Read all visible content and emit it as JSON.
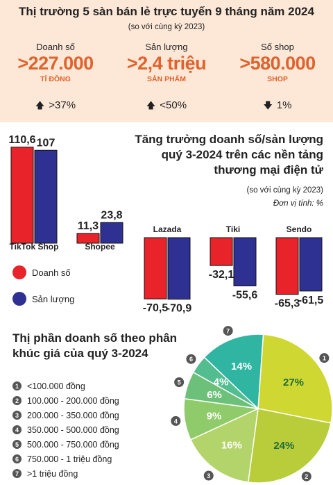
{
  "header": {
    "title": "Thị trường 5 sàn bán lẻ trực tuyến 9 tháng năm 2024",
    "subtitle": "(so với cùng kỳ 2023)"
  },
  "stats": [
    {
      "label": "Doanh số",
      "value": ">227.000",
      "unit": "TỈ ĐỒNG",
      "change": ">37%",
      "direction": "up"
    },
    {
      "label": "Sản lượng",
      "value": ">2,4 triệu",
      "unit": "SẢN PHẨM",
      "change": "<50%",
      "direction": "up"
    },
    {
      "label": "Số shop",
      "value": ">580.000",
      "unit": "SHOP",
      "change": "1%",
      "direction": "down"
    }
  ],
  "bar_section": {
    "title_lines": [
      "Tăng trưởng doanh số/sản lượng",
      "quý 3-2024 trên các nền tảng",
      "thương mại điện tử"
    ],
    "subtitle": "(so với cùng kỳ 2023)",
    "unit_note": "Đơn vị tính: %"
  },
  "pie_section": {
    "title_lines": [
      "Thị phần doanh số theo phân",
      "khúc giá của quý 3-2024"
    ]
  },
  "colors": {
    "revenue": "#e8232a",
    "volume": "#2e3192",
    "accent": "#e0622c",
    "top_bg": "#fde8d8"
  },
  "chart_data": [
    {
      "type": "bar",
      "categories": [
        "TikTok Shop",
        "Shopee",
        "Lazada",
        "Tiki",
        "Sendo"
      ],
      "series": [
        {
          "name": "Doanh số",
          "values": [
            110.6,
            11.3,
            -70.5,
            -32.1,
            -65.3
          ],
          "labels": [
            "110,6",
            "11,3",
            "-70,5",
            "-32,1",
            "-65,3"
          ]
        },
        {
          "name": "Sản lượng",
          "values": [
            107,
            23.8,
            -70.9,
            -55.6,
            -61.5
          ],
          "labels": [
            "107",
            "23,8",
            "-70,9",
            "-55,6",
            "-61,5"
          ]
        }
      ]
    },
    {
      "type": "pie",
      "categories": [
        "<100.000 đồng",
        "100.000 - 200.000 đồng",
        "200.000 - 350.000 đồng",
        "350.000 - 500.000 đồng",
        "500.000 - 750.000 đồng",
        "750.000 - 1 triệu đồng",
        ">1 triệu đồng"
      ],
      "numbers": [
        "1",
        "2",
        "3",
        "4",
        "5",
        "6",
        "7"
      ],
      "values": [
        27,
        24,
        16,
        9,
        6,
        4,
        14
      ],
      "labels": [
        "27%",
        "24%",
        "16%",
        "9%",
        "6%",
        "4%",
        "14%"
      ],
      "colors": [
        "#cfd832",
        "#b9cc3a",
        "#b3d46a",
        "#8fcb6a",
        "#6cc07a",
        "#54bd90",
        "#2fb5a2"
      ]
    }
  ]
}
